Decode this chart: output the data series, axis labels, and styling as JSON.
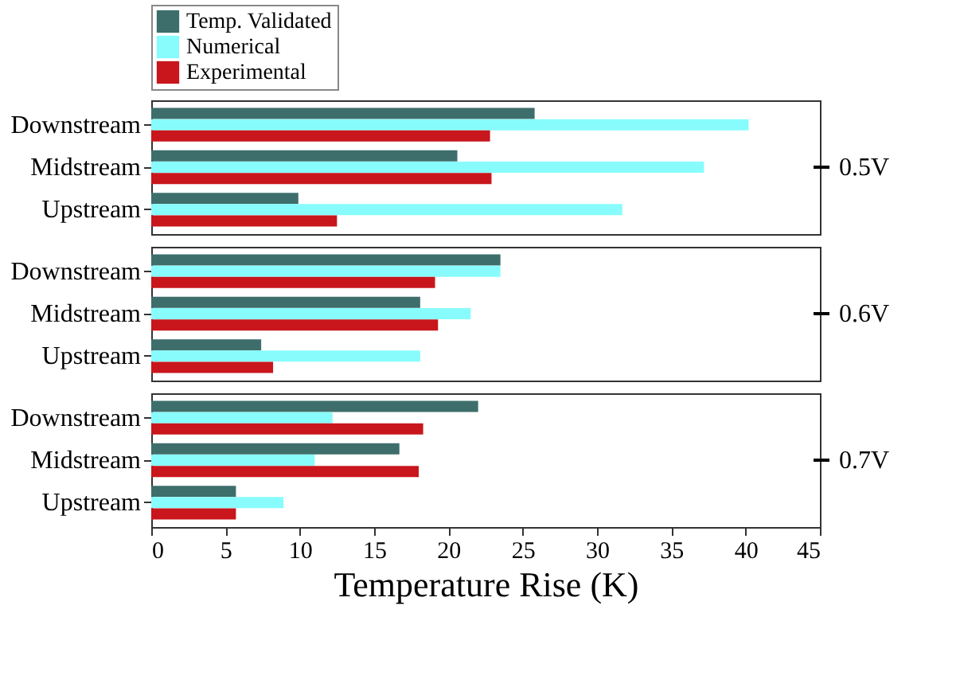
{
  "chart_data": [
    {
      "type": "bar",
      "orientation": "horizontal",
      "categories": [
        "Downstream",
        "Midstream",
        "Upstream"
      ],
      "y2label": "0.5V",
      "legend": "top",
      "tick_labels": "y",
      "xlim": [
        0,
        45
      ],
      "series": [
        {
          "name": "Temp. Validated",
          "color": "#3d6e6b",
          "values": [
            25.8,
            20.6,
            9.9
          ]
        },
        {
          "name": "Numerical",
          "color": "#88fcfc",
          "values": [
            40.2,
            37.2,
            31.7
          ]
        },
        {
          "name": "Experimental",
          "color": "#c8161c",
          "values": [
            22.8,
            22.9,
            12.5
          ]
        }
      ]
    },
    {
      "type": "bar",
      "orientation": "horizontal",
      "categories": [
        "Downstream",
        "Midstream",
        "Upstream"
      ],
      "y2label": "0.6V",
      "tick_labels": "y",
      "xlim": [
        0,
        45
      ],
      "series": [
        {
          "name": "Temp. Validated",
          "color": "#3d6e6b",
          "values": [
            23.5,
            18.1,
            7.4
          ]
        },
        {
          "name": "Numerical",
          "color": "#88fcfc",
          "values": [
            23.5,
            21.5,
            18.1
          ]
        },
        {
          "name": "Experimental",
          "color": "#c8161c",
          "values": [
            19.1,
            19.3,
            8.2
          ]
        }
      ]
    },
    {
      "type": "bar",
      "orientation": "horizontal",
      "categories": [
        "Downstream",
        "Midstream",
        "Upstream"
      ],
      "y2label": "0.7V",
      "xlabel": "Temperature Rise (K)",
      "xlim": [
        0,
        45
      ],
      "xticks": [
        0,
        5,
        10,
        15,
        20,
        25,
        30,
        35,
        40,
        45
      ],
      "series": [
        {
          "name": "Temp. Validated",
          "color": "#3d6e6b",
          "values": [
            22.0,
            16.7,
            5.7
          ]
        },
        {
          "name": "Numerical",
          "color": "#88fcfc",
          "values": [
            12.2,
            11.0,
            8.9
          ]
        },
        {
          "name": "Experimental",
          "color": "#c8161c",
          "values": [
            18.3,
            18.0,
            5.7
          ]
        }
      ]
    }
  ]
}
